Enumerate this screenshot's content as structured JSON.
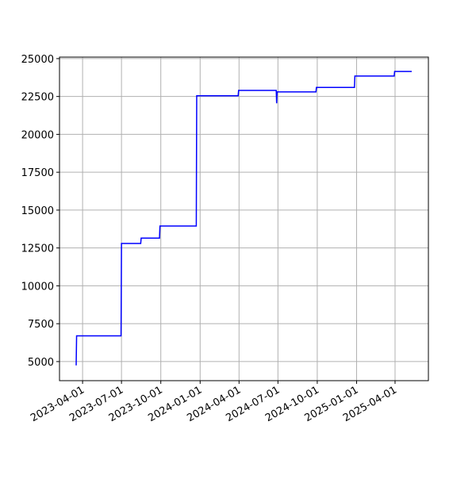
{
  "chart_data": {
    "type": "line",
    "x": [
      "2023-03-17",
      "2023-03-18",
      "2023-06-30",
      "2023-07-01",
      "2023-08-15",
      "2023-08-16",
      "2023-09-28",
      "2023-09-29",
      "2023-12-23",
      "2023-12-24",
      "2024-03-30",
      "2024-03-31",
      "2024-06-27",
      "2024-06-28",
      "2024-06-29",
      "2024-09-28",
      "2024-09-29",
      "2024-12-27",
      "2024-12-28",
      "2025-03-30",
      "2025-03-31",
      "2025-05-10"
    ],
    "series": [
      {
        "color": "#0000ff",
        "values": [
          4750,
          6700,
          6700,
          12800,
          12800,
          13150,
          13150,
          13950,
          13950,
          22550,
          22550,
          22900,
          22900,
          22050,
          22800,
          22800,
          23100,
          23100,
          23850,
          23850,
          24150,
          24150
        ]
      }
    ],
    "xlim": [
      "2023-02-06",
      "2025-06-18"
    ],
    "xticks": [
      "2023-04-01",
      "2023-07-01",
      "2023-10-01",
      "2024-01-01",
      "2024-04-01",
      "2024-07-01",
      "2024-10-01",
      "2025-01-01",
      "2025-04-01"
    ],
    "ylim": [
      3740,
      25100
    ],
    "yticks": [
      5000,
      7500,
      10000,
      12500,
      15000,
      17500,
      20000,
      22500,
      25000
    ],
    "grid": true
  }
}
